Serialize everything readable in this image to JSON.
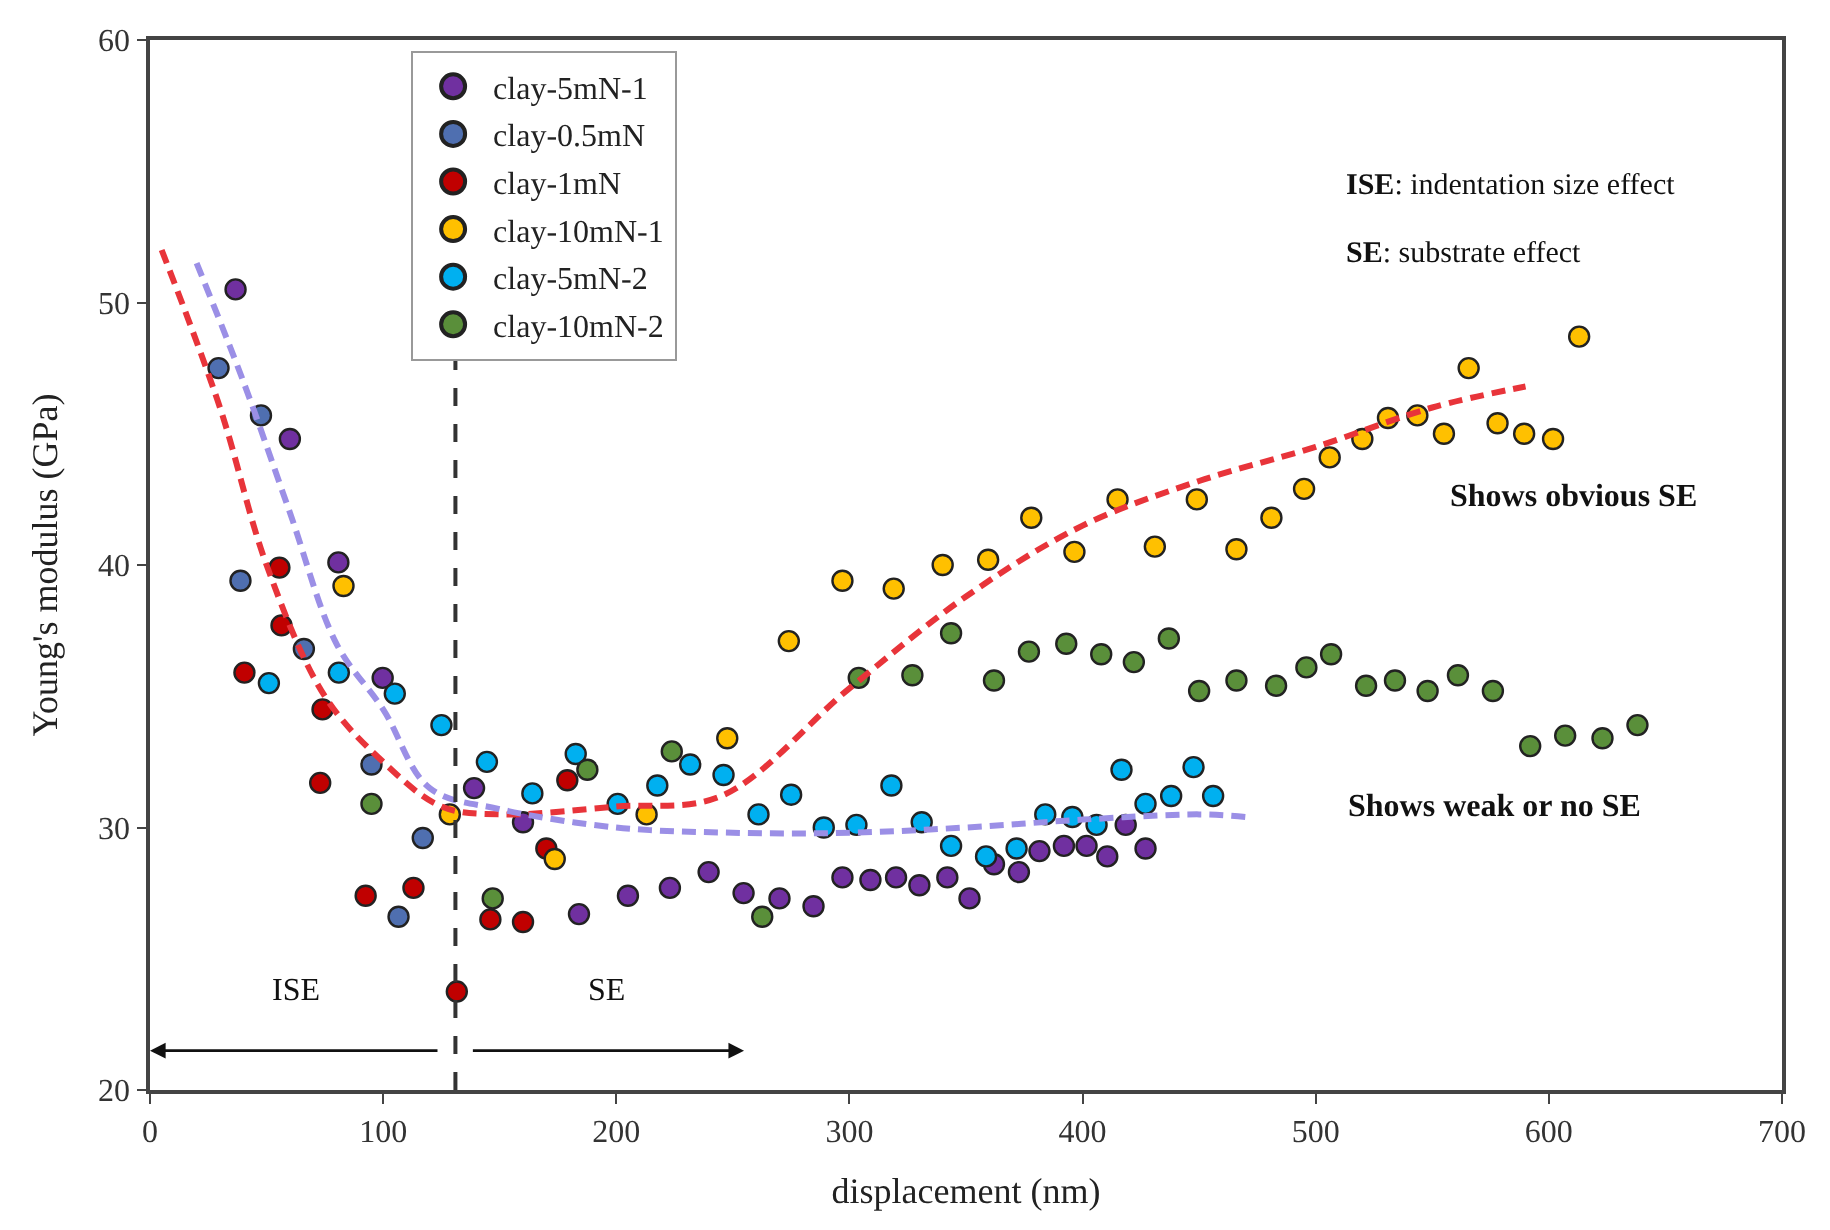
{
  "chart_data": {
    "type": "scatter",
    "xlabel": "displacement (nm)",
    "ylabel": "Young's modulus (GPa)",
    "xlim": [
      0,
      700
    ],
    "xticks": [
      0,
      100,
      200,
      300,
      400,
      500,
      600,
      700
    ],
    "ylim": [
      20,
      60
    ],
    "yticks": [
      20,
      30,
      40,
      50,
      60
    ],
    "legend": "top left",
    "marker": "circle",
    "series": [
      {
        "name": "clay-5mN-1",
        "color": "#7030a0",
        "x": [
          36.7,
          60,
          80.8,
          99.8,
          139,
          160,
          184,
          205,
          223,
          239.6,
          254.6,
          270,
          284.6,
          297,
          309,
          320,
          330,
          342,
          351.5,
          362,
          372.7,
          381.5,
          392,
          401.7,
          410.6,
          418.5,
          427
        ],
        "values": [
          50.5,
          44.8,
          40.1,
          35.7,
          31.5,
          30.2,
          26.7,
          27.4,
          27.7,
          28.3,
          27.5,
          27.3,
          27,
          28.1,
          28,
          28.1,
          27.8,
          28.1,
          27.3,
          28.6,
          28.3,
          29.1,
          29.3,
          29.3,
          28.9,
          30.1,
          29.2
        ]
      },
      {
        "name": "clay-0.5mN",
        "color": "#4f6fb0",
        "x": [
          29.4,
          47.6,
          38.8,
          66,
          95,
          117,
          106.6
        ],
        "values": [
          47.5,
          45.7,
          39.4,
          36.8,
          32.4,
          29.6,
          26.6
        ]
      },
      {
        "name": "clay-1mN",
        "color": "#c00000",
        "x": [
          55.5,
          40.5,
          56.4,
          74,
          73,
          179,
          92.5,
          113,
          131.6,
          146,
          160,
          170
        ],
        "values": [
          39.9,
          35.9,
          37.7,
          34.5,
          31.7,
          31.8,
          27.4,
          27.7,
          23.75,
          26.5,
          26.4,
          29.2
        ]
      },
      {
        "name": "clay-10mN-1",
        "color": "#ffc000",
        "x": [
          83,
          128.6,
          173.6,
          213,
          247.6,
          274,
          297,
          319,
          340,
          359.5,
          378,
          396.5,
          415,
          431,
          449,
          466,
          481,
          495,
          506,
          520,
          531,
          543.6,
          555,
          565.6,
          578,
          589.4,
          601.8,
          613
        ],
        "values": [
          39.2,
          30.5,
          28.8,
          30.5,
          33.4,
          37.1,
          39.4,
          39.1,
          40,
          40.2,
          41.8,
          40.5,
          42.5,
          40.7,
          42.5,
          40.6,
          41.8,
          42.9,
          44.1,
          44.8,
          45.6,
          45.7,
          45,
          47.5,
          45.4,
          45,
          44.8,
          48.7
        ]
      },
      {
        "name": "clay-5mN-2",
        "color": "#00b0f0",
        "x": [
          51,
          81,
          105,
          125,
          144.5,
          164,
          182.6,
          200.6,
          217.6,
          231.7,
          246,
          261,
          275,
          289,
          303,
          318,
          331,
          343.6,
          358.6,
          371.7,
          384,
          395.6,
          406,
          416.7,
          427,
          438,
          447.6,
          456
        ],
        "values": [
          35.5,
          35.9,
          35.1,
          33.9,
          32.5,
          31.3,
          32.8,
          30.9,
          31.6,
          32.4,
          32,
          30.5,
          31.25,
          30,
          30.1,
          31.6,
          30.2,
          29.3,
          28.9,
          29.2,
          30.5,
          30.4,
          30.1,
          32.2,
          30.9,
          31.2,
          32.3,
          31.2
        ]
      },
      {
        "name": "clay-10mN-2",
        "color": "#5a8f3a",
        "x": [
          95,
          147,
          187.6,
          223.8,
          262.6,
          304,
          327,
          343.6,
          362,
          377,
          393,
          408,
          422,
          437,
          450,
          466,
          483,
          496,
          506.6,
          521.6,
          534,
          548,
          561,
          576,
          592,
          607,
          623,
          638
        ],
        "values": [
          30.9,
          27.3,
          32.2,
          32.9,
          26.6,
          35.7,
          35.8,
          37.4,
          35.6,
          36.7,
          37,
          36.6,
          36.3,
          37.2,
          35.2,
          35.6,
          35.4,
          36.1,
          36.6,
          35.4,
          35.6,
          35.2,
          35.8,
          35.2,
          33.1,
          33.5,
          33.4,
          33.9
        ]
      },
      {
        "type": "line",
        "marker": "none",
        "line_style": "dashed",
        "color": "#e8343a",
        "x": [
          5,
          30,
          50,
          75,
          100,
          125,
          150,
          200,
          245,
          300,
          350,
          400,
          450,
          500,
          550,
          590
        ],
        "values": [
          52,
          46,
          40,
          35,
          32.5,
          30.8,
          30.5,
          30.8,
          31.2,
          35.3,
          38.8,
          41.5,
          43.2,
          44.5,
          46,
          46.8
        ]
      },
      {
        "type": "line",
        "marker": "none",
        "line_style": "dashed",
        "color": "#9b8fe6",
        "x": [
          20,
          40,
          60,
          80,
          100,
          120,
          150,
          200,
          250,
          300,
          350,
          400,
          450,
          470
        ],
        "values": [
          51.5,
          47,
          42,
          37,
          34.5,
          31.5,
          30.7,
          30,
          29.8,
          29.8,
          30,
          30.3,
          30.5,
          30.4
        ]
      }
    ],
    "ref_lines": [
      {
        "axis": "x",
        "value": 131,
        "color": "#333333",
        "line_style": "dashed"
      }
    ],
    "annotations": [
      "ISE: indentation size effect",
      "SE: substrate effect",
      "ISE",
      "SE",
      "Shows obvious SE",
      "Shows weak or no SE"
    ]
  }
}
